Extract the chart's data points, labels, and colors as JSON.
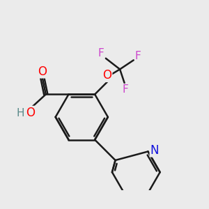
{
  "background_color": "#ebebeb",
  "bond_color": "#1a1a1a",
  "bond_width": 1.8,
  "atom_colors": {
    "O": "#ff0000",
    "H": "#5a8a8a",
    "F": "#cc44cc",
    "N": "#1111dd"
  },
  "font_size": 11,
  "fig_size": [
    3.0,
    3.0
  ],
  "dpi": 100
}
